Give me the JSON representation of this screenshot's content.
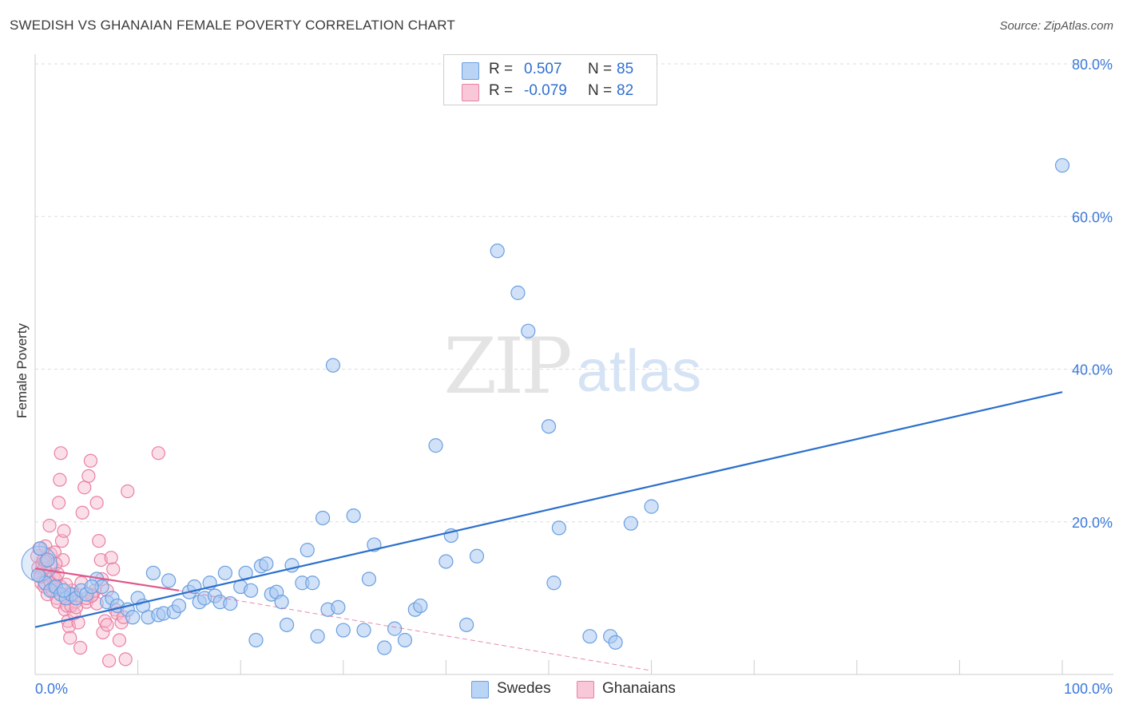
{
  "title": "SWEDISH VS GHANAIAN FEMALE POVERTY CORRELATION CHART",
  "source": "Source: ZipAtlas.com",
  "watermark": {
    "zip": "ZIP",
    "atlas": "atlas"
  },
  "stats": [
    {
      "r_label": "R =",
      "r_value": "0.507",
      "n_label": "N =",
      "n_value": "85"
    },
    {
      "r_label": "R =",
      "r_value": "-0.079",
      "n_label": "N =",
      "n_value": "82"
    }
  ],
  "legend": {
    "swedes": "Swedes",
    "ghanaians": "Ghanaians"
  },
  "colors": {
    "blue_fill": "#a9c9f2",
    "blue_stroke": "#6a9fe0",
    "blue_line": "#2a6fcc",
    "pink_fill": "#f6b9cd",
    "pink_stroke": "#ea7fa3",
    "pink_line": "#e0588a",
    "tick_label": "#3b78d8",
    "grid": "#dddddd"
  },
  "chart_data": {
    "type": "scatter",
    "title": "SWEDISH VS GHANAIAN FEMALE POVERTY CORRELATION CHART",
    "xlabel": "",
    "ylabel": "Female Poverty",
    "xlim": [
      0,
      100
    ],
    "ylim": [
      0,
      80
    ],
    "x_tick_labels": [
      "0.0%",
      "100.0%"
    ],
    "y_ticks": [
      20,
      40,
      60,
      80
    ],
    "y_tick_labels": [
      "20.0%",
      "40.0%",
      "60.0%",
      "80.0%"
    ],
    "grid": "horizontal dashed",
    "series": [
      {
        "name": "Swedes",
        "color": "#a9c9f2",
        "r": 0.507,
        "n": 85,
        "trend": {
          "x": [
            0,
            100
          ],
          "y": [
            6.2,
            37.0
          ]
        },
        "points": [
          [
            0.5,
            16.5
          ],
          [
            1,
            12
          ],
          [
            1.5,
            11
          ],
          [
            2,
            11.5
          ],
          [
            2.5,
            10.5
          ],
          [
            3,
            10
          ],
          [
            3.5,
            10.5
          ],
          [
            4,
            10
          ],
          [
            4.5,
            11
          ],
          [
            5,
            10.5
          ],
          [
            6,
            12.5
          ],
          [
            6.5,
            11.5
          ],
          [
            7,
            9.5
          ],
          [
            7.5,
            10
          ],
          [
            8,
            9
          ],
          [
            9,
            8.5
          ],
          [
            9.5,
            7.5
          ],
          [
            10,
            10
          ],
          [
            10.5,
            9
          ],
          [
            11,
            7.5
          ],
          [
            11.5,
            13.3
          ],
          [
            12,
            7.8
          ],
          [
            12.5,
            8
          ],
          [
            13,
            12.3
          ],
          [
            13.5,
            8.2
          ],
          [
            14,
            9
          ],
          [
            15,
            10.8
          ],
          [
            15.5,
            11.5
          ],
          [
            16,
            9.5
          ],
          [
            16.5,
            10
          ],
          [
            17,
            12
          ],
          [
            17.5,
            10.3
          ],
          [
            18,
            9.5
          ],
          [
            18.5,
            13.3
          ],
          [
            19,
            9.3
          ],
          [
            20,
            11.5
          ],
          [
            20.5,
            13.3
          ],
          [
            21,
            11
          ],
          [
            21.5,
            4.5
          ],
          [
            22,
            14.2
          ],
          [
            22.5,
            14.5
          ],
          [
            23,
            10.5
          ],
          [
            23.5,
            10.8
          ],
          [
            24,
            9.5
          ],
          [
            24.5,
            6.5
          ],
          [
            25,
            14.3
          ],
          [
            26,
            12
          ],
          [
            26.5,
            16.3
          ],
          [
            27,
            12
          ],
          [
            27.5,
            5
          ],
          [
            28,
            20.5
          ],
          [
            28.5,
            8.5
          ],
          [
            29,
            40.5
          ],
          [
            29.5,
            8.8
          ],
          [
            30,
            5.8
          ],
          [
            31,
            20.8
          ],
          [
            32,
            5.8
          ],
          [
            32.5,
            12.5
          ],
          [
            33,
            17
          ],
          [
            34,
            3.5
          ],
          [
            35,
            6
          ],
          [
            36,
            4.5
          ],
          [
            37,
            8.5
          ],
          [
            37.5,
            9
          ],
          [
            39,
            30
          ],
          [
            40,
            14.8
          ],
          [
            40.5,
            18.2
          ],
          [
            42,
            6.5
          ],
          [
            43,
            15.5
          ],
          [
            45,
            55.5
          ],
          [
            47,
            50
          ],
          [
            48,
            45
          ],
          [
            50,
            32.5
          ],
          [
            50.5,
            12
          ],
          [
            51,
            19.2
          ],
          [
            54,
            5
          ],
          [
            56,
            5
          ],
          [
            56.5,
            4.2
          ],
          [
            58,
            19.8
          ],
          [
            60,
            22
          ],
          [
            100,
            66.7
          ],
          [
            0.3,
            13
          ],
          [
            1.2,
            15
          ],
          [
            2.8,
            11
          ],
          [
            5.5,
            11.5
          ]
        ]
      },
      {
        "name": "Ghanaians",
        "color": "#f6b9cd",
        "r": -0.079,
        "n": 82,
        "trend": {
          "x": [
            0,
            14
          ],
          "y": [
            13.9,
            11.0
          ]
        },
        "trend_ext": {
          "x": [
            14,
            60
          ],
          "y": [
            11.0,
            0.5
          ]
        },
        "points": [
          [
            0.2,
            15.5
          ],
          [
            0.3,
            14
          ],
          [
            0.4,
            16.5
          ],
          [
            0.5,
            13
          ],
          [
            0.6,
            12
          ],
          [
            0.7,
            14.5
          ],
          [
            0.8,
            15
          ],
          [
            0.9,
            11.5
          ],
          [
            1,
            16.8
          ],
          [
            1.1,
            13.5
          ],
          [
            1.2,
            10.5
          ],
          [
            1.3,
            12.5
          ],
          [
            1.4,
            19.5
          ],
          [
            1.5,
            15.8
          ],
          [
            1.6,
            14.2
          ],
          [
            1.7,
            11
          ],
          [
            1.8,
            13
          ],
          [
            1.9,
            16
          ],
          [
            2,
            12.5
          ],
          [
            2.1,
            10
          ],
          [
            2.2,
            9.5
          ],
          [
            2.3,
            22.5
          ],
          [
            2.4,
            25.5
          ],
          [
            2.5,
            29
          ],
          [
            2.6,
            17.5
          ],
          [
            2.7,
            15
          ],
          [
            2.8,
            18.8
          ],
          [
            2.9,
            8.5
          ],
          [
            3,
            10
          ],
          [
            3.1,
            9
          ],
          [
            3.2,
            7
          ],
          [
            3.3,
            6.3
          ],
          [
            3.4,
            4.8
          ],
          [
            3.5,
            10.5
          ],
          [
            3.6,
            11
          ],
          [
            3.7,
            10.5
          ],
          [
            3.8,
            8
          ],
          [
            3.9,
            9.5
          ],
          [
            4,
            10
          ],
          [
            4.2,
            6.8
          ],
          [
            4.4,
            3.5
          ],
          [
            4.6,
            21.2
          ],
          [
            4.8,
            24.5
          ],
          [
            5,
            9.5
          ],
          [
            5.2,
            26
          ],
          [
            5.4,
            28
          ],
          [
            5.6,
            10.5
          ],
          [
            5.8,
            11
          ],
          [
            6,
            22.5
          ],
          [
            6.2,
            17.5
          ],
          [
            6.4,
            15
          ],
          [
            6.6,
            5.5
          ],
          [
            6.8,
            7
          ],
          [
            7,
            6.5
          ],
          [
            7.2,
            1.8
          ],
          [
            7.4,
            15.3
          ],
          [
            7.6,
            13.8
          ],
          [
            7.8,
            8.5
          ],
          [
            8,
            8
          ],
          [
            8.2,
            4.5
          ],
          [
            8.4,
            6.8
          ],
          [
            8.6,
            7.5
          ],
          [
            8.8,
            2
          ],
          [
            9,
            24
          ],
          [
            12,
            29
          ],
          [
            0.9,
            13.9
          ],
          [
            1.5,
            12
          ],
          [
            2,
            14.5
          ],
          [
            2.5,
            11.5
          ],
          [
            3,
            11.8
          ],
          [
            3.5,
            9
          ],
          [
            4,
            8.8
          ],
          [
            5,
            10
          ],
          [
            6,
            9.3
          ],
          [
            6.5,
            12.5
          ],
          [
            7,
            11
          ],
          [
            0.5,
            12.8
          ],
          [
            1,
            14.8
          ],
          [
            1.8,
            11.5
          ],
          [
            2.2,
            13.2
          ],
          [
            4.5,
            12
          ],
          [
            5.5,
            10.3
          ]
        ]
      }
    ]
  }
}
